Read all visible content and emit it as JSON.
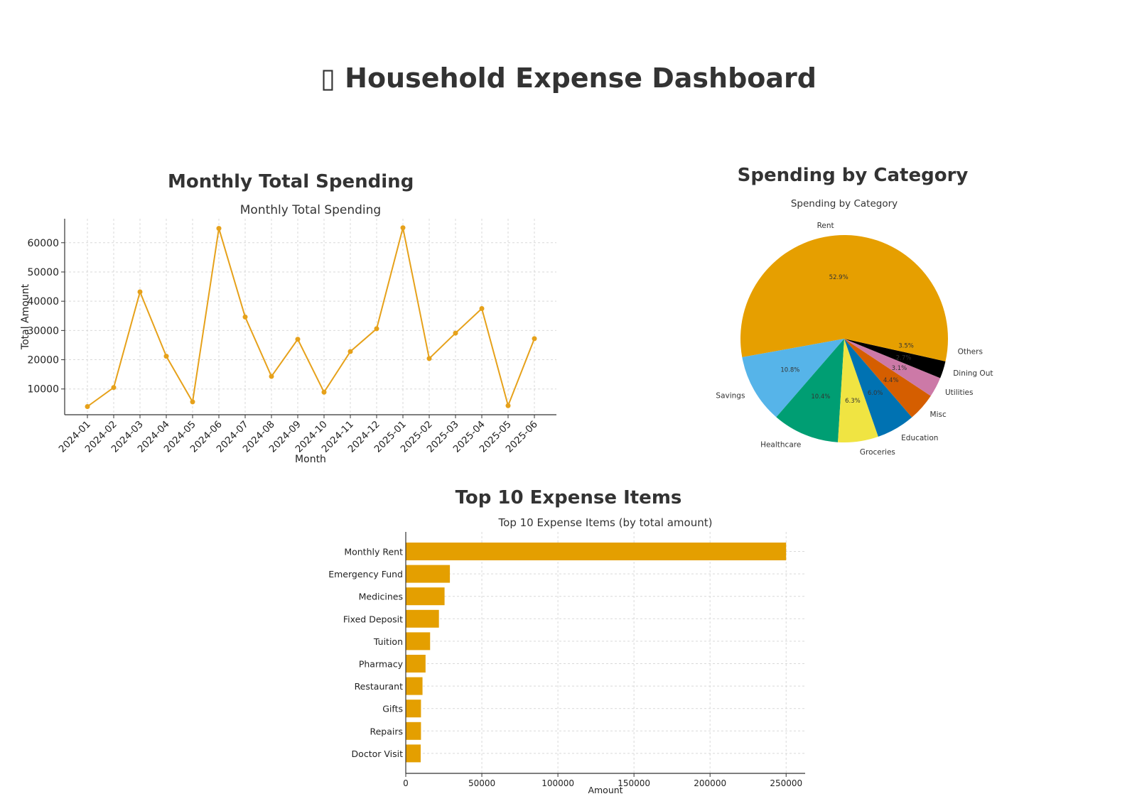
{
  "dashboard": {
    "title": "▯ Household Expense Dashboard"
  },
  "sections": {
    "monthly": "Monthly Total Spending",
    "category": "Spending by Category",
    "top10": "Top 10 Expense Items"
  },
  "colors": {
    "line": "#E6A11A",
    "bar": "#E49F00",
    "grid": "#D9D9D9",
    "axis": "#333333"
  },
  "chart_data": [
    {
      "type": "line",
      "title": "Monthly Total Spending",
      "xlabel": "Month",
      "ylabel": "Total Amount",
      "x": [
        "2024-01",
        "2024-02",
        "2024-03",
        "2024-04",
        "2024-05",
        "2024-06",
        "2024-07",
        "2024-08",
        "2024-09",
        "2024-10",
        "2024-11",
        "2024-12",
        "2025-01",
        "2025-02",
        "2025-03",
        "2025-04",
        "2025-05",
        "2025-06"
      ],
      "values": [
        4000,
        10500,
        43200,
        21200,
        5600,
        64900,
        34600,
        14300,
        27000,
        8900,
        22800,
        30600,
        65100,
        20400,
        29100,
        37500,
        4300,
        27200
      ],
      "ylim": [
        1200,
        68200
      ],
      "yticks": [
        10000,
        20000,
        30000,
        40000,
        50000,
        60000
      ],
      "grid": true,
      "marker": "circle"
    },
    {
      "type": "pie",
      "title": "Spending by Category",
      "slices": [
        {
          "label": "Rent",
          "pct": 52.9,
          "pct_label": "52.9%",
          "color": "#E69F00"
        },
        {
          "label": "Savings",
          "pct": 10.8,
          "pct_label": "10.8%",
          "color": "#56B4E9"
        },
        {
          "label": "Healthcare",
          "pct": 10.4,
          "pct_label": "10.4%",
          "color": "#009E73"
        },
        {
          "label": "Groceries",
          "pct": 6.3,
          "pct_label": "6.3%",
          "color": "#F0E442"
        },
        {
          "label": "Education",
          "pct": 6.0,
          "pct_label": "6.0%",
          "color": "#0072B2"
        },
        {
          "label": "Misc",
          "pct": 4.4,
          "pct_label": "4.4%",
          "color": "#D55E00"
        },
        {
          "label": "Utilities",
          "pct": 3.1,
          "pct_label": "3.1%",
          "color": "#CC79A7"
        },
        {
          "label": "Dining Out",
          "pct": 2.7,
          "pct_label": "2.7%",
          "color": "#000000"
        },
        {
          "label": "Others",
          "pct": 3.5,
          "pct_label": "3.5%",
          "color": "#E69F00"
        }
      ]
    },
    {
      "type": "bar",
      "orientation": "horizontal",
      "title": "Top 10 Expense Items (by total amount)",
      "xlabel": "Amount",
      "categories": [
        "Monthly Rent",
        "Emergency Fund",
        "Medicines",
        "Fixed Deposit",
        "Tuition",
        "Pharmacy",
        "Restaurant",
        "Gifts",
        "Repairs",
        "Doctor Visit"
      ],
      "values": [
        250000,
        29000,
        25500,
        21800,
        16000,
        13000,
        11000,
        10000,
        10000,
        9800
      ],
      "xlim": [
        0,
        262500
      ],
      "xticks": [
        0,
        50000,
        100000,
        150000,
        200000,
        250000
      ],
      "grid": true
    }
  ]
}
